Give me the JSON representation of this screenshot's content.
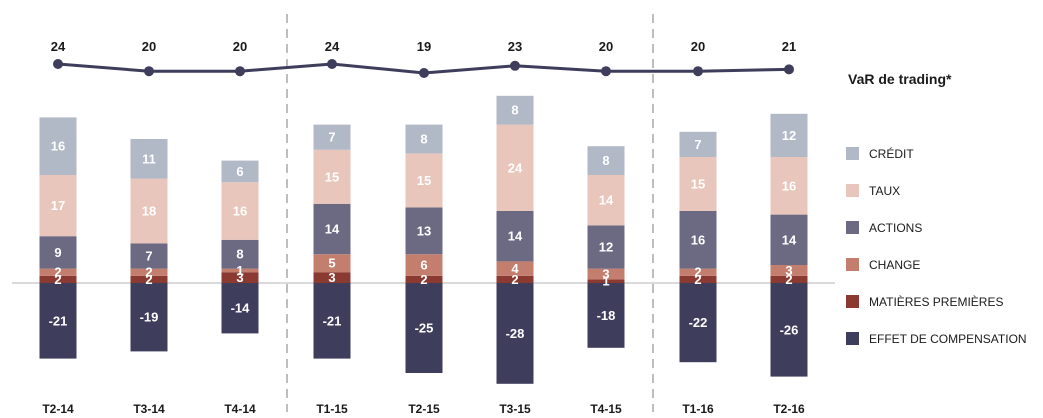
{
  "chart_data": {
    "type": "bar",
    "stacked": true,
    "categories": [
      "T2-14",
      "T3-14",
      "T4-14",
      "T1-15",
      "T2-15",
      "T3-15",
      "T4-15",
      "T1-16",
      "T2-16"
    ],
    "series": [
      {
        "name": "MATIÈRES PREMIÈRES",
        "color": "#8b3a32",
        "values": [
          2,
          2,
          3,
          3,
          2,
          2,
          1,
          2,
          2
        ]
      },
      {
        "name": "CHANGE",
        "color": "#c47e6e",
        "values": [
          2,
          2,
          1,
          5,
          6,
          4,
          3,
          2,
          3
        ]
      },
      {
        "name": "ACTIONS",
        "color": "#6b6a82",
        "values": [
          9,
          7,
          8,
          14,
          13,
          14,
          12,
          16,
          14
        ]
      },
      {
        "name": "TAUX",
        "color": "#e9c6bb",
        "values": [
          17,
          18,
          16,
          15,
          15,
          24,
          14,
          15,
          16
        ]
      },
      {
        "name": "CRÉDIT",
        "color": "#b1b8c6",
        "values": [
          16,
          11,
          6,
          7,
          8,
          8,
          8,
          7,
          12
        ]
      },
      {
        "name": "EFFET DE COMPENSATION",
        "color": "#3f3d5c",
        "values": [
          -21,
          -19,
          -14,
          -21,
          -25,
          -28,
          -18,
          -22,
          -26
        ]
      }
    ],
    "line": {
      "name": "VaR de trading*",
      "color": "#3f3d5c",
      "values": [
        24,
        20,
        20,
        24,
        19,
        23,
        20,
        20,
        21
      ]
    },
    "legend_order": [
      "CRÉDIT",
      "TAUX",
      "ACTIONS",
      "CHANGE",
      "MATIÈRES PREMIÈRES",
      "EFFET DE COMPENSATION"
    ],
    "legend_position": "right",
    "grid": false
  }
}
